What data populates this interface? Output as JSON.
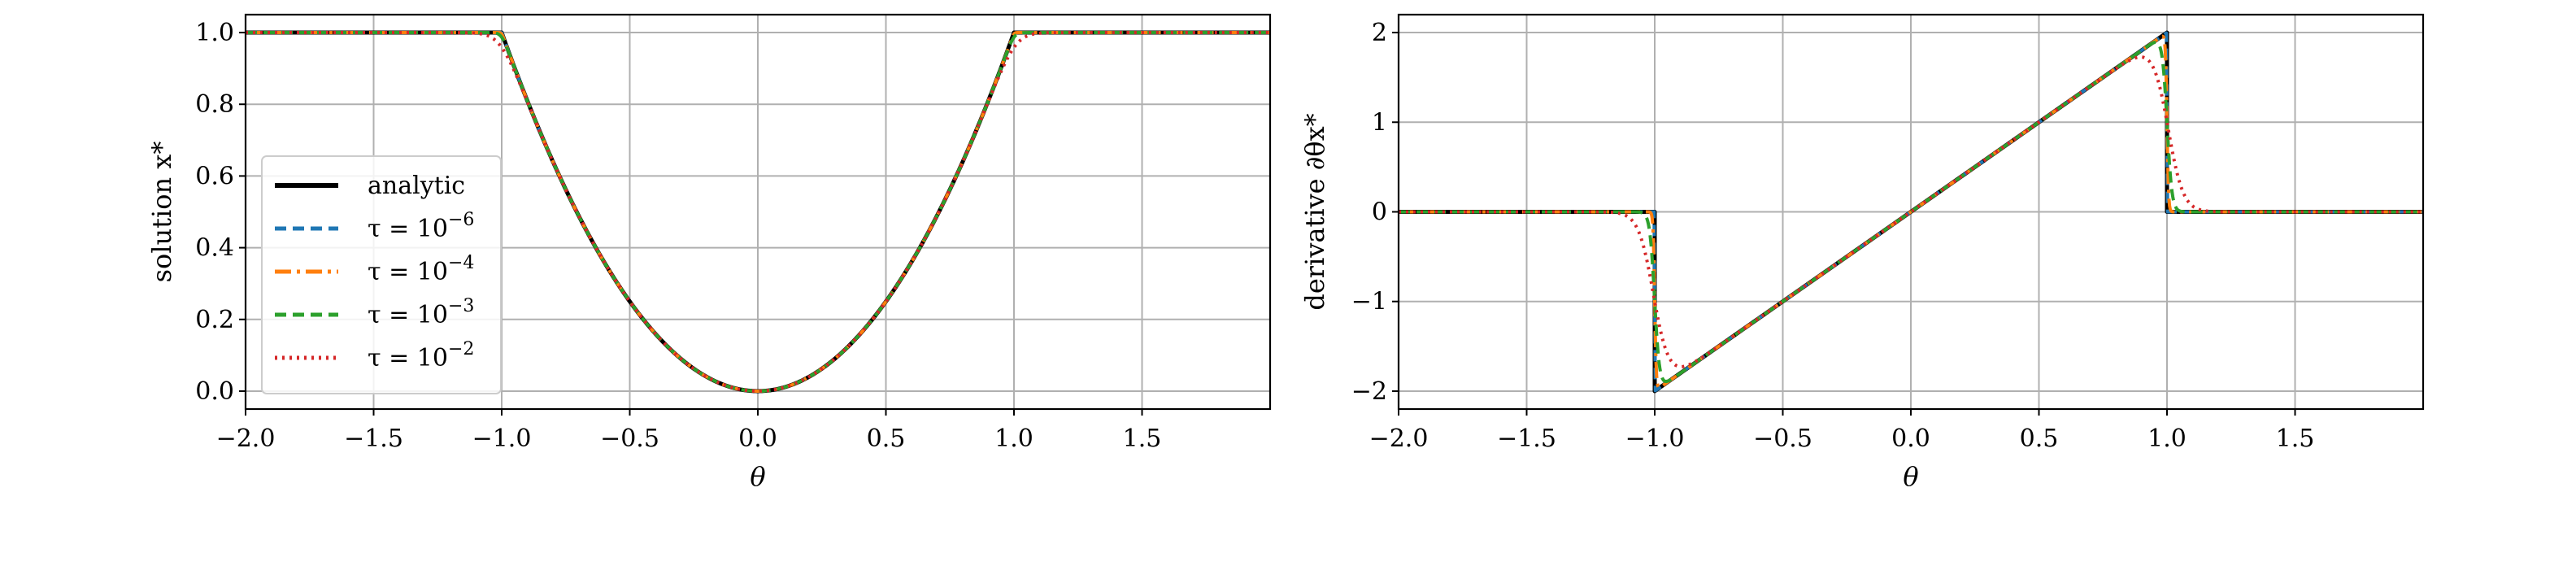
{
  "chart_data": [
    {
      "type": "line",
      "id": "left",
      "xlabel": "θ",
      "ylabel": "solution x*",
      "xlim": [
        -2.0,
        2.0
      ],
      "ylim": [
        -0.05,
        1.05
      ],
      "xticks": [
        -2.0,
        -1.5,
        -1.0,
        -0.5,
        0.0,
        0.5,
        1.0,
        1.5
      ],
      "xtick_labels": [
        "−2.0",
        "−1.5",
        "−1.0",
        "−0.5",
        "0.0",
        "0.5",
        "1.0",
        "1.5"
      ],
      "yticks": [
        0.0,
        0.2,
        0.4,
        0.6,
        0.8,
        1.0
      ],
      "ytick_labels": [
        "0.0",
        "0.2",
        "0.4",
        "0.6",
        "0.8",
        "1.0"
      ],
      "grid": true,
      "legend": "bottom-left",
      "series": [
        {
          "name": "analytic",
          "tau": 0,
          "color": "#000000",
          "dash": "",
          "width": 5
        },
        {
          "name": "τ = 10^−6",
          "tau": 1e-06,
          "color": "#1f77b4",
          "dash": "14,8",
          "width": 4
        },
        {
          "name": "τ = 10^−4",
          "tau": 0.0001,
          "color": "#ff7f0e",
          "dash": "20,7,4,7",
          "width": 4
        },
        {
          "name": "τ = 10^−3",
          "tau": 0.001,
          "color": "#2ca02c",
          "dash": "14,8",
          "width": 4
        },
        {
          "name": "τ = 10^−2",
          "tau": 0.01,
          "color": "#d62728",
          "dash": "3,6",
          "width": 4
        }
      ]
    },
    {
      "type": "line",
      "id": "right",
      "xlabel": "θ",
      "ylabel": "derivative ∂θx*",
      "xlim": [
        -2.0,
        2.0
      ],
      "ylim": [
        -2.2,
        2.2
      ],
      "xticks": [
        -2.0,
        -1.5,
        -1.0,
        -0.5,
        0.0,
        0.5,
        1.0,
        1.5
      ],
      "xtick_labels": [
        "−2.0",
        "−1.5",
        "−1.0",
        "−0.5",
        "0.0",
        "0.5",
        "1.0",
        "1.5"
      ],
      "yticks": [
        -2,
        -1,
        0,
        1,
        2
      ],
      "ytick_labels": [
        "−2",
        "−1",
        "0",
        "1",
        "2"
      ],
      "grid": true,
      "series": [
        {
          "name": "analytic",
          "tau": 0,
          "color": "#000000",
          "dash": "",
          "width": 5
        },
        {
          "name": "τ = 10^−6",
          "tau": 1e-06,
          "color": "#1f77b4",
          "dash": "14,8",
          "width": 4
        },
        {
          "name": "τ = 10^−4",
          "tau": 0.0001,
          "color": "#ff7f0e",
          "dash": "20,7,4,7",
          "width": 4
        },
        {
          "name": "τ = 10^−3",
          "tau": 0.001,
          "color": "#2ca02c",
          "dash": "14,8",
          "width": 4
        },
        {
          "name": "τ = 10^−2",
          "tau": 0.01,
          "color": "#d62728",
          "dash": "3,6",
          "width": 4
        }
      ]
    }
  ],
  "legend": {
    "entries": [
      {
        "base": "analytic",
        "exp": ""
      },
      {
        "base": "τ = 10",
        "exp": "−6"
      },
      {
        "base": "τ = 10",
        "exp": "−4"
      },
      {
        "base": "τ = 10",
        "exp": "−3"
      },
      {
        "base": "τ = 10",
        "exp": "−2"
      }
    ]
  }
}
